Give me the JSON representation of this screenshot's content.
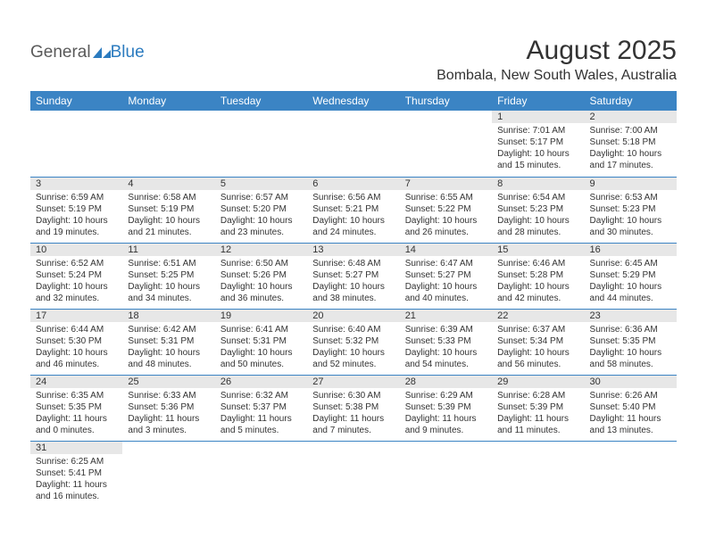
{
  "logo": {
    "part1": "General",
    "part2": "Blue",
    "icon_color": "#2b7bbf"
  },
  "title": "August 2025",
  "location": "Bombala, New South Wales, Australia",
  "colors": {
    "header_bg": "#3b84c4",
    "header_text": "#ffffff",
    "daynum_bg": "#e7e7e7",
    "border": "#3b84c4",
    "text": "#333333"
  },
  "day_headers": [
    "Sunday",
    "Monday",
    "Tuesday",
    "Wednesday",
    "Thursday",
    "Friday",
    "Saturday"
  ],
  "weeks": [
    [
      null,
      null,
      null,
      null,
      null,
      {
        "n": "1",
        "sr": "7:01 AM",
        "ss": "5:17 PM",
        "dl": "10 hours and 15 minutes."
      },
      {
        "n": "2",
        "sr": "7:00 AM",
        "ss": "5:18 PM",
        "dl": "10 hours and 17 minutes."
      }
    ],
    [
      {
        "n": "3",
        "sr": "6:59 AM",
        "ss": "5:19 PM",
        "dl": "10 hours and 19 minutes."
      },
      {
        "n": "4",
        "sr": "6:58 AM",
        "ss": "5:19 PM",
        "dl": "10 hours and 21 minutes."
      },
      {
        "n": "5",
        "sr": "6:57 AM",
        "ss": "5:20 PM",
        "dl": "10 hours and 23 minutes."
      },
      {
        "n": "6",
        "sr": "6:56 AM",
        "ss": "5:21 PM",
        "dl": "10 hours and 24 minutes."
      },
      {
        "n": "7",
        "sr": "6:55 AM",
        "ss": "5:22 PM",
        "dl": "10 hours and 26 minutes."
      },
      {
        "n": "8",
        "sr": "6:54 AM",
        "ss": "5:23 PM",
        "dl": "10 hours and 28 minutes."
      },
      {
        "n": "9",
        "sr": "6:53 AM",
        "ss": "5:23 PM",
        "dl": "10 hours and 30 minutes."
      }
    ],
    [
      {
        "n": "10",
        "sr": "6:52 AM",
        "ss": "5:24 PM",
        "dl": "10 hours and 32 minutes."
      },
      {
        "n": "11",
        "sr": "6:51 AM",
        "ss": "5:25 PM",
        "dl": "10 hours and 34 minutes."
      },
      {
        "n": "12",
        "sr": "6:50 AM",
        "ss": "5:26 PM",
        "dl": "10 hours and 36 minutes."
      },
      {
        "n": "13",
        "sr": "6:48 AM",
        "ss": "5:27 PM",
        "dl": "10 hours and 38 minutes."
      },
      {
        "n": "14",
        "sr": "6:47 AM",
        "ss": "5:27 PM",
        "dl": "10 hours and 40 minutes."
      },
      {
        "n": "15",
        "sr": "6:46 AM",
        "ss": "5:28 PM",
        "dl": "10 hours and 42 minutes."
      },
      {
        "n": "16",
        "sr": "6:45 AM",
        "ss": "5:29 PM",
        "dl": "10 hours and 44 minutes."
      }
    ],
    [
      {
        "n": "17",
        "sr": "6:44 AM",
        "ss": "5:30 PM",
        "dl": "10 hours and 46 minutes."
      },
      {
        "n": "18",
        "sr": "6:42 AM",
        "ss": "5:31 PM",
        "dl": "10 hours and 48 minutes."
      },
      {
        "n": "19",
        "sr": "6:41 AM",
        "ss": "5:31 PM",
        "dl": "10 hours and 50 minutes."
      },
      {
        "n": "20",
        "sr": "6:40 AM",
        "ss": "5:32 PM",
        "dl": "10 hours and 52 minutes."
      },
      {
        "n": "21",
        "sr": "6:39 AM",
        "ss": "5:33 PM",
        "dl": "10 hours and 54 minutes."
      },
      {
        "n": "22",
        "sr": "6:37 AM",
        "ss": "5:34 PM",
        "dl": "10 hours and 56 minutes."
      },
      {
        "n": "23",
        "sr": "6:36 AM",
        "ss": "5:35 PM",
        "dl": "10 hours and 58 minutes."
      }
    ],
    [
      {
        "n": "24",
        "sr": "6:35 AM",
        "ss": "5:35 PM",
        "dl": "11 hours and 0 minutes."
      },
      {
        "n": "25",
        "sr": "6:33 AM",
        "ss": "5:36 PM",
        "dl": "11 hours and 3 minutes."
      },
      {
        "n": "26",
        "sr": "6:32 AM",
        "ss": "5:37 PM",
        "dl": "11 hours and 5 minutes."
      },
      {
        "n": "27",
        "sr": "6:30 AM",
        "ss": "5:38 PM",
        "dl": "11 hours and 7 minutes."
      },
      {
        "n": "28",
        "sr": "6:29 AM",
        "ss": "5:39 PM",
        "dl": "11 hours and 9 minutes."
      },
      {
        "n": "29",
        "sr": "6:28 AM",
        "ss": "5:39 PM",
        "dl": "11 hours and 11 minutes."
      },
      {
        "n": "30",
        "sr": "6:26 AM",
        "ss": "5:40 PM",
        "dl": "11 hours and 13 minutes."
      }
    ],
    [
      {
        "n": "31",
        "sr": "6:25 AM",
        "ss": "5:41 PM",
        "dl": "11 hours and 16 minutes."
      },
      null,
      null,
      null,
      null,
      null,
      null
    ]
  ],
  "labels": {
    "sunrise": "Sunrise:",
    "sunset": "Sunset:",
    "daylight": "Daylight:"
  }
}
